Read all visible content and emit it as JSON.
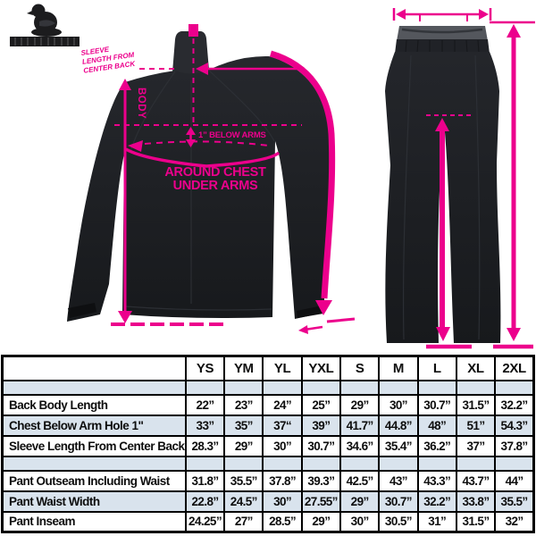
{
  "colors": {
    "accent_pink": "#EC008C",
    "garment_dark": "#1E2126",
    "table_row_alt": "#D9E3ED",
    "table_border": "#000000"
  },
  "logo": {
    "emblem_icon": "bird-emblem",
    "wordmark_icon": "brand-wordmark"
  },
  "jacket": {
    "note_lines": [
      "SLEEVE",
      "LENGTH FROM",
      "CENTER BACK"
    ],
    "body_label": "BODY",
    "below_arms_label": "1” BELOW ARMS",
    "chest_label_1": "AROUND CHEST",
    "chest_label_2": "UNDER ARMS"
  },
  "size_chart": {
    "columns": [
      "YS",
      "YM",
      "YL",
      "YXL",
      "S",
      "M",
      "L",
      "XL",
      "2XL"
    ],
    "rows": [
      {
        "label": "Back Body Length",
        "values": [
          "22”",
          "23”",
          "24”",
          "25”",
          "29”",
          "30”",
          "30.7”",
          "31.5”",
          "32.2”"
        ]
      },
      {
        "label": "Chest Below Arm Hole 1\"",
        "values": [
          "33”",
          "35”",
          "37“",
          "39”",
          "41.7”",
          "44.8”",
          "48”",
          "51”",
          "54.3”"
        ]
      },
      {
        "label": "Sleeve Length From Center Back",
        "values": [
          "28.3”",
          "29”",
          "30”",
          "30.7”",
          "34.6”",
          "35.4”",
          "36.2”",
          "37”",
          "37.8”"
        ]
      },
      {
        "label": "Pant Outseam Including Waist",
        "values": [
          "31.8”",
          "35.5”",
          "37.8”",
          "39.3”",
          "42.5”",
          "43”",
          "43.3”",
          "43.7”",
          "44”"
        ]
      },
      {
        "label": "Pant Waist Width",
        "values": [
          "22.8”",
          "24.5”",
          "30”",
          "27.55”",
          "29”",
          "30.7”",
          "32.2”",
          "33.8”",
          "35.5”"
        ]
      },
      {
        "label": "Pant Inseam",
        "values": [
          "24.25”",
          "27”",
          "28.5”",
          "29”",
          "30”",
          "30.5”",
          "31”",
          "31.5”",
          "32”"
        ]
      }
    ]
  }
}
